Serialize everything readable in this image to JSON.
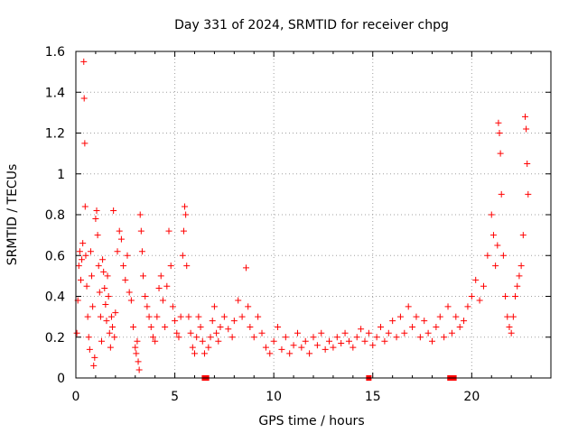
{
  "chart_data": {
    "type": "scatter",
    "title": "Day 331 of 2024, SRMTID for receiver chpg",
    "xlabel": "GPS time / hours",
    "ylabel": "SRMTID / TECUs",
    "xlim": [
      0,
      24
    ],
    "ylim": [
      0,
      1.6
    ],
    "xticks": [
      "0",
      "5",
      "10",
      "15",
      "20"
    ],
    "yticks": [
      "0",
      "0.2",
      "0.4",
      "0.6",
      "0.8",
      "1",
      "1.2",
      "1.4",
      "1.6"
    ],
    "grid": true,
    "marker": "+",
    "color": "#ff0000",
    "series": [
      {
        "name": "SRMTID",
        "points": [
          [
            0.05,
            0.22
          ],
          [
            0.1,
            0.38
          ],
          [
            0.15,
            0.55
          ],
          [
            0.2,
            0.62
          ],
          [
            0.25,
            0.48
          ],
          [
            0.3,
            0.58
          ],
          [
            0.35,
            0.66
          ],
          [
            0.4,
            1.55
          ],
          [
            0.42,
            1.37
          ],
          [
            0.45,
            1.15
          ],
          [
            0.47,
            0.84
          ],
          [
            0.5,
            0.6
          ],
          [
            0.55,
            0.45
          ],
          [
            0.6,
            0.3
          ],
          [
            0.65,
            0.2
          ],
          [
            0.7,
            0.14
          ],
          [
            0.75,
            0.62
          ],
          [
            0.8,
            0.5
          ],
          [
            0.85,
            0.35
          ],
          [
            0.9,
            0.06
          ],
          [
            0.95,
            0.1
          ],
          [
            1.0,
            0.78
          ],
          [
            1.05,
            0.82
          ],
          [
            1.1,
            0.7
          ],
          [
            1.15,
            0.55
          ],
          [
            1.2,
            0.42
          ],
          [
            1.25,
            0.3
          ],
          [
            1.3,
            0.18
          ],
          [
            1.35,
            0.58
          ],
          [
            1.4,
            0.52
          ],
          [
            1.45,
            0.44
          ],
          [
            1.5,
            0.36
          ],
          [
            1.55,
            0.28
          ],
          [
            1.6,
            0.5
          ],
          [
            1.65,
            0.4
          ],
          [
            1.7,
            0.22
          ],
          [
            1.75,
            0.15
          ],
          [
            1.8,
            0.3
          ],
          [
            1.85,
            0.25
          ],
          [
            1.9,
            0.82
          ],
          [
            1.95,
            0.2
          ],
          [
            2.0,
            0.32
          ],
          [
            2.1,
            0.62
          ],
          [
            2.2,
            0.72
          ],
          [
            2.3,
            0.68
          ],
          [
            2.4,
            0.55
          ],
          [
            2.5,
            0.48
          ],
          [
            2.6,
            0.6
          ],
          [
            2.7,
            0.42
          ],
          [
            2.8,
            0.38
          ],
          [
            2.9,
            0.25
          ],
          [
            3.0,
            0.15
          ],
          [
            3.05,
            0.12
          ],
          [
            3.1,
            0.18
          ],
          [
            3.15,
            0.08
          ],
          [
            3.2,
            0.04
          ],
          [
            3.25,
            0.8
          ],
          [
            3.3,
            0.72
          ],
          [
            3.35,
            0.62
          ],
          [
            3.4,
            0.5
          ],
          [
            3.5,
            0.4
          ],
          [
            3.6,
            0.35
          ],
          [
            3.7,
            0.3
          ],
          [
            3.8,
            0.25
          ],
          [
            3.9,
            0.2
          ],
          [
            4.0,
            0.18
          ],
          [
            4.1,
            0.3
          ],
          [
            4.2,
            0.44
          ],
          [
            4.3,
            0.5
          ],
          [
            4.4,
            0.38
          ],
          [
            4.5,
            0.25
          ],
          [
            4.6,
            0.45
          ],
          [
            4.7,
            0.72
          ],
          [
            4.8,
            0.55
          ],
          [
            4.9,
            0.35
          ],
          [
            5.0,
            0.28
          ],
          [
            5.1,
            0.22
          ],
          [
            5.2,
            0.2
          ],
          [
            5.3,
            0.3
          ],
          [
            5.4,
            0.6
          ],
          [
            5.45,
            0.72
          ],
          [
            5.5,
            0.84
          ],
          [
            5.55,
            0.8
          ],
          [
            5.6,
            0.55
          ],
          [
            5.7,
            0.3
          ],
          [
            5.8,
            0.22
          ],
          [
            5.9,
            0.15
          ],
          [
            6.0,
            0.12
          ],
          [
            6.1,
            0.2
          ],
          [
            6.2,
            0.3
          ],
          [
            6.3,
            0.25
          ],
          [
            6.4,
            0.18
          ],
          [
            6.5,
            0.12
          ],
          [
            6.7,
            0.15
          ],
          [
            6.8,
            0.2
          ],
          [
            6.9,
            0.28
          ],
          [
            7.0,
            0.35
          ],
          [
            7.1,
            0.22
          ],
          [
            7.2,
            0.18
          ],
          [
            7.3,
            0.25
          ],
          [
            7.5,
            0.3
          ],
          [
            7.7,
            0.24
          ],
          [
            7.9,
            0.2
          ],
          [
            8.0,
            0.28
          ],
          [
            8.2,
            0.38
          ],
          [
            8.4,
            0.3
          ],
          [
            8.6,
            0.54
          ],
          [
            8.7,
            0.35
          ],
          [
            8.8,
            0.25
          ],
          [
            9.0,
            0.2
          ],
          [
            9.2,
            0.3
          ],
          [
            9.4,
            0.22
          ],
          [
            9.6,
            0.15
          ],
          [
            9.8,
            0.12
          ],
          [
            10.0,
            0.18
          ],
          [
            10.2,
            0.25
          ],
          [
            10.4,
            0.14
          ],
          [
            10.6,
            0.2
          ],
          [
            10.8,
            0.12
          ],
          [
            11.0,
            0.16
          ],
          [
            11.2,
            0.22
          ],
          [
            11.4,
            0.15
          ],
          [
            11.6,
            0.18
          ],
          [
            11.8,
            0.12
          ],
          [
            12.0,
            0.2
          ],
          [
            12.2,
            0.16
          ],
          [
            12.4,
            0.22
          ],
          [
            12.6,
            0.14
          ],
          [
            12.8,
            0.18
          ],
          [
            13.0,
            0.15
          ],
          [
            13.2,
            0.2
          ],
          [
            13.4,
            0.17
          ],
          [
            13.6,
            0.22
          ],
          [
            13.8,
            0.18
          ],
          [
            14.0,
            0.15
          ],
          [
            14.2,
            0.2
          ],
          [
            14.4,
            0.24
          ],
          [
            14.6,
            0.18
          ],
          [
            14.8,
            0.22
          ],
          [
            15.0,
            0.16
          ],
          [
            15.2,
            0.2
          ],
          [
            15.4,
            0.25
          ],
          [
            15.6,
            0.18
          ],
          [
            15.8,
            0.22
          ],
          [
            16.0,
            0.28
          ],
          [
            16.2,
            0.2
          ],
          [
            16.4,
            0.3
          ],
          [
            16.6,
            0.22
          ],
          [
            16.8,
            0.35
          ],
          [
            17.0,
            0.25
          ],
          [
            17.2,
            0.3
          ],
          [
            17.4,
            0.2
          ],
          [
            17.6,
            0.28
          ],
          [
            17.8,
            0.22
          ],
          [
            18.0,
            0.18
          ],
          [
            18.2,
            0.25
          ],
          [
            18.4,
            0.3
          ],
          [
            18.6,
            0.2
          ],
          [
            18.8,
            0.35
          ],
          [
            19.0,
            0.22
          ],
          [
            19.2,
            0.3
          ],
          [
            19.4,
            0.25
          ],
          [
            19.6,
            0.28
          ],
          [
            19.8,
            0.35
          ],
          [
            20.0,
            0.4
          ],
          [
            20.2,
            0.48
          ],
          [
            20.4,
            0.38
          ],
          [
            20.6,
            0.45
          ],
          [
            20.8,
            0.6
          ],
          [
            21.0,
            0.8
          ],
          [
            21.1,
            0.7
          ],
          [
            21.2,
            0.55
          ],
          [
            21.3,
            0.65
          ],
          [
            21.35,
            1.25
          ],
          [
            21.4,
            1.2
          ],
          [
            21.45,
            1.1
          ],
          [
            21.5,
            0.9
          ],
          [
            21.6,
            0.6
          ],
          [
            21.7,
            0.4
          ],
          [
            21.8,
            0.3
          ],
          [
            21.9,
            0.25
          ],
          [
            22.0,
            0.22
          ],
          [
            22.1,
            0.3
          ],
          [
            22.2,
            0.4
          ],
          [
            22.3,
            0.45
          ],
          [
            22.4,
            0.5
          ],
          [
            22.5,
            0.55
          ],
          [
            22.6,
            0.7
          ],
          [
            22.7,
            1.28
          ],
          [
            22.75,
            1.22
          ],
          [
            22.8,
            1.05
          ],
          [
            22.85,
            0.9
          ]
        ]
      }
    ],
    "gap_markers_x": [
      6.5,
      6.6,
      14.8,
      18.9,
      19.1
    ]
  }
}
